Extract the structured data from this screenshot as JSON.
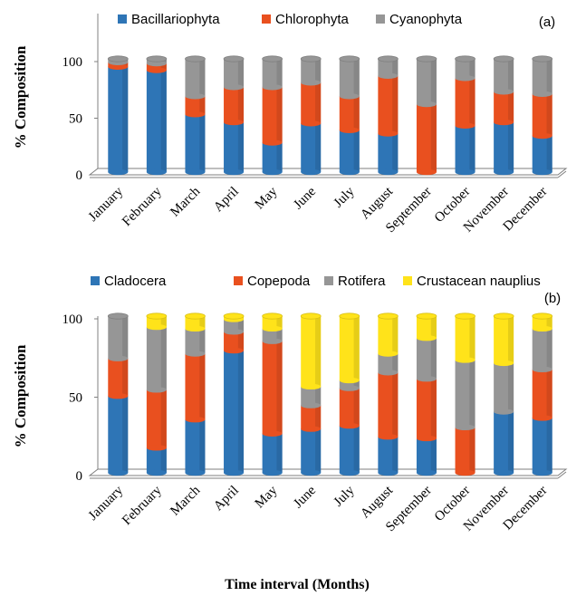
{
  "figure": {
    "xlabel": "Time interval (Months)"
  },
  "chart_data": [
    {
      "type": "bar",
      "stacked": true,
      "panel": "(a)",
      "ylabel": "% Composition",
      "ylim": [
        0,
        150
      ],
      "yticks": [
        0,
        50,
        100,
        150
      ],
      "legend_position": "top",
      "categories": [
        "January",
        "February",
        "March",
        "April",
        "May",
        "June",
        "July",
        "August",
        "September",
        "October",
        "November",
        "December"
      ],
      "series": [
        {
          "name": "Bacillariophyta",
          "color": "#2e75b6",
          "values": [
            93,
            90,
            51,
            44,
            26,
            43,
            37,
            34,
            0,
            41,
            44,
            32
          ]
        },
        {
          "name": "Chlorophyta",
          "color": "#e9501f",
          "values": [
            4,
            6,
            16,
            31,
            49,
            36,
            30,
            51,
            60,
            42,
            27,
            37
          ]
        },
        {
          "name": "Cyanophyta",
          "color": "#969696",
          "values": [
            3,
            4,
            33,
            25,
            25,
            21,
            33,
            15,
            40,
            17,
            29,
            31
          ]
        }
      ]
    },
    {
      "type": "bar",
      "stacked": true,
      "panel": "(b)",
      "ylabel": "% Composition",
      "ylim": [
        0,
        100
      ],
      "yticks": [
        0,
        50,
        100
      ],
      "legend_position": "top",
      "categories": [
        "January",
        "February",
        "March",
        "April",
        "May",
        "June",
        "July",
        "August",
        "September",
        "October",
        "November",
        "December"
      ],
      "series": [
        {
          "name": "Cladocera",
          "color": "#2e75b6",
          "values": [
            49,
            16,
            34,
            78,
            25,
            28,
            30,
            23,
            22,
            0,
            39,
            35
          ]
        },
        {
          "name": "Copepoda",
          "color": "#e9501f",
          "values": [
            24,
            37,
            42,
            12,
            59,
            15,
            24,
            41,
            38,
            29,
            0,
            31
          ]
        },
        {
          "name": "Rotifera",
          "color": "#969696",
          "values": [
            27,
            40,
            16,
            8,
            8,
            12,
            5,
            12,
            26,
            43,
            31,
            26
          ]
        },
        {
          "name": "Crustacean nauplius",
          "color": "#ffe31a",
          "values": [
            0,
            7,
            8,
            2,
            8,
            45,
            41,
            24,
            14,
            28,
            30,
            8
          ]
        }
      ]
    }
  ]
}
